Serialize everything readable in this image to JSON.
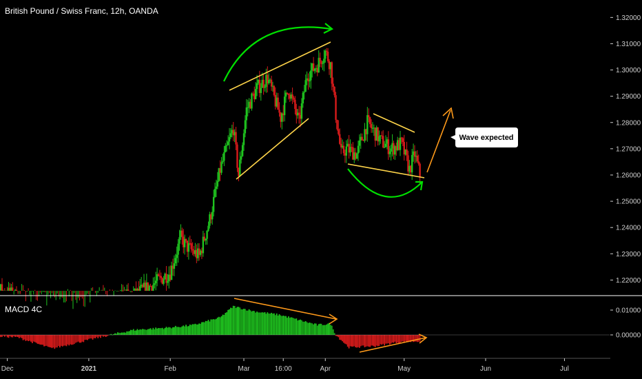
{
  "header": {
    "title": "British Pound / Swiss Franc, 12h, OANDA",
    "indicator_label": "MACD 4C"
  },
  "annotation": {
    "callout": "Wave expected"
  },
  "colors": {
    "background": "#000000",
    "bull": "#1fc41f",
    "bear": "#d81b1b",
    "trendline": "#ffd54a",
    "arrow_green": "#00e000",
    "arrow_orange": "#ff9a1a",
    "axis_text": "#d0d0d0",
    "separator": "#ffffff"
  },
  "chart_data": [
    {
      "type": "candlestick",
      "title": "British Pound / Swiss Franc, 12h, OANDA",
      "y_ticks": [
        "1.32000",
        "1.31000",
        "1.30000",
        "1.29000",
        "1.28000",
        "1.27000",
        "1.26000",
        "1.25000",
        "1.24000",
        "1.23000",
        "1.22000"
      ],
      "y_tick_values": [
        1.32,
        1.31,
        1.3,
        1.29,
        1.28,
        1.27,
        1.26,
        1.25,
        1.24,
        1.23,
        1.22
      ],
      "ylim": [
        1.2159,
        1.3235
      ],
      "x_ticks": [
        "Dec",
        "2021",
        "Feb",
        "Mar",
        "16:00",
        "Apr",
        "May",
        "Jun",
        "Jul"
      ],
      "x_tick_dates": [
        "2020-12-01",
        "2021-01-01",
        "2021-02-01",
        "2021-03-01",
        "2021-03-16",
        "2021-04-01",
        "2021-05-01",
        "2021-06-01",
        "2021-07-01"
      ],
      "price_path": {
        "dates": [
          "2020-11-20",
          "2020-12-15",
          "2021-01-05",
          "2021-01-18",
          "2021-01-25",
          "2021-02-01",
          "2021-02-05",
          "2021-02-07",
          "2021-02-12",
          "2021-02-16",
          "2021-02-20",
          "2021-02-25",
          "2021-02-27",
          "2021-03-02",
          "2021-03-06",
          "2021-03-10",
          "2021-03-15",
          "2021-03-18",
          "2021-03-22",
          "2021-03-25",
          "2021-03-29",
          "2021-04-01",
          "2021-04-03",
          "2021-04-05",
          "2021-04-07",
          "2021-04-09",
          "2021-04-13",
          "2021-04-17",
          "2021-04-20",
          "2021-04-22",
          "2021-04-26",
          "2021-04-30",
          "2021-05-03",
          "2021-05-05",
          "2021-05-07"
        ],
        "close": [
          1.219,
          1.21,
          1.212,
          1.214,
          1.218,
          1.223,
          1.236,
          1.233,
          1.229,
          1.243,
          1.262,
          1.278,
          1.26,
          1.285,
          1.293,
          1.297,
          1.282,
          1.293,
          1.28,
          1.298,
          1.302,
          1.307,
          1.302,
          1.283,
          1.268,
          1.27,
          1.268,
          1.28,
          1.276,
          1.273,
          1.27,
          1.272,
          1.262,
          1.268,
          1.26
        ]
      }
    },
    {
      "type": "histogram",
      "title": "MACD 4C",
      "y_ticks": [
        "0.01000",
        "0.00000"
      ],
      "y_tick_values": [
        0.01,
        0.0
      ],
      "series": [
        {
          "dates": [
            "2020-11-20",
            "2020-12-05",
            "2020-12-18",
            "2021-01-05",
            "2021-01-18",
            "2021-02-01",
            "2021-02-10",
            "2021-02-20",
            "2021-02-25",
            "2021-03-05",
            "2021-03-15",
            "2021-03-22",
            "2021-03-29",
            "2021-04-03",
            "2021-04-05",
            "2021-04-10",
            "2021-04-20",
            "2021-04-28",
            "2021-05-07"
          ],
          "values": [
            0.0,
            -0.001,
            -0.0055,
            -0.001,
            0.002,
            0.003,
            0.004,
            0.007,
            0.0115,
            0.0095,
            0.008,
            0.006,
            0.004,
            0.0045,
            0.0,
            -0.005,
            -0.0045,
            -0.003,
            -0.0025
          ]
        }
      ]
    }
  ]
}
